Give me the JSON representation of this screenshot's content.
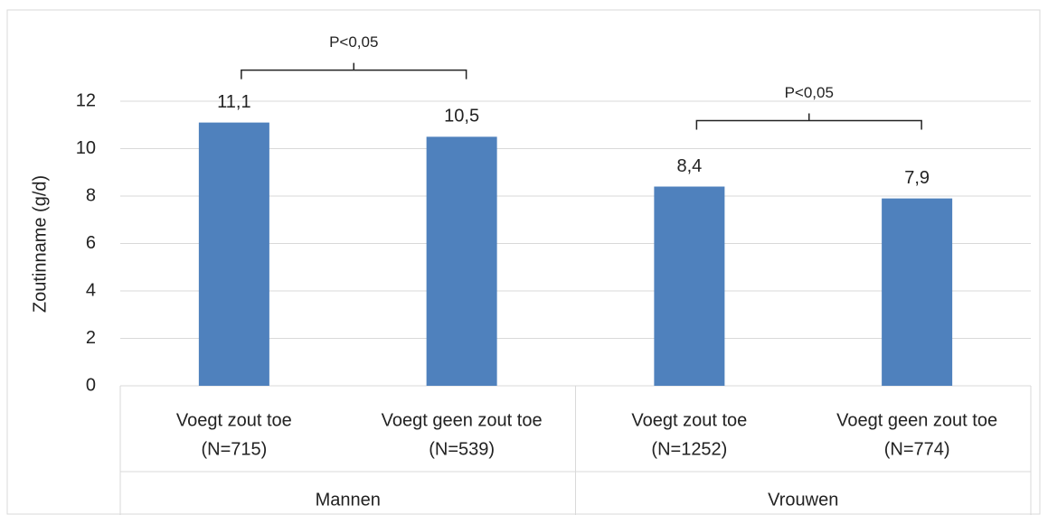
{
  "chart_data": {
    "type": "bar",
    "y_label": "Zoutinname (g/d)",
    "categories": [
      [
        "Voegt zout toe",
        "(N=715)"
      ],
      [
        "Voegt geen zout toe",
        "(N=539)"
      ],
      [
        "Voegt zout toe",
        "(N=1252)"
      ],
      [
        "Voegt geen zout toe",
        "(N=774)"
      ]
    ],
    "groups": [
      "Mannen",
      "Vrouwen"
    ],
    "values": [
      11.1,
      10.5,
      8.4,
      7.9
    ],
    "value_labels": [
      "11,1",
      "10,5",
      "8,4",
      "7,9"
    ],
    "annotations": [
      "P<0,05",
      "P<0,05"
    ],
    "color": "#4f81bd",
    "ylim": [
      0,
      12
    ],
    "yticks": [
      0,
      2,
      4,
      6,
      8,
      10,
      12
    ],
    "grid": true
  }
}
